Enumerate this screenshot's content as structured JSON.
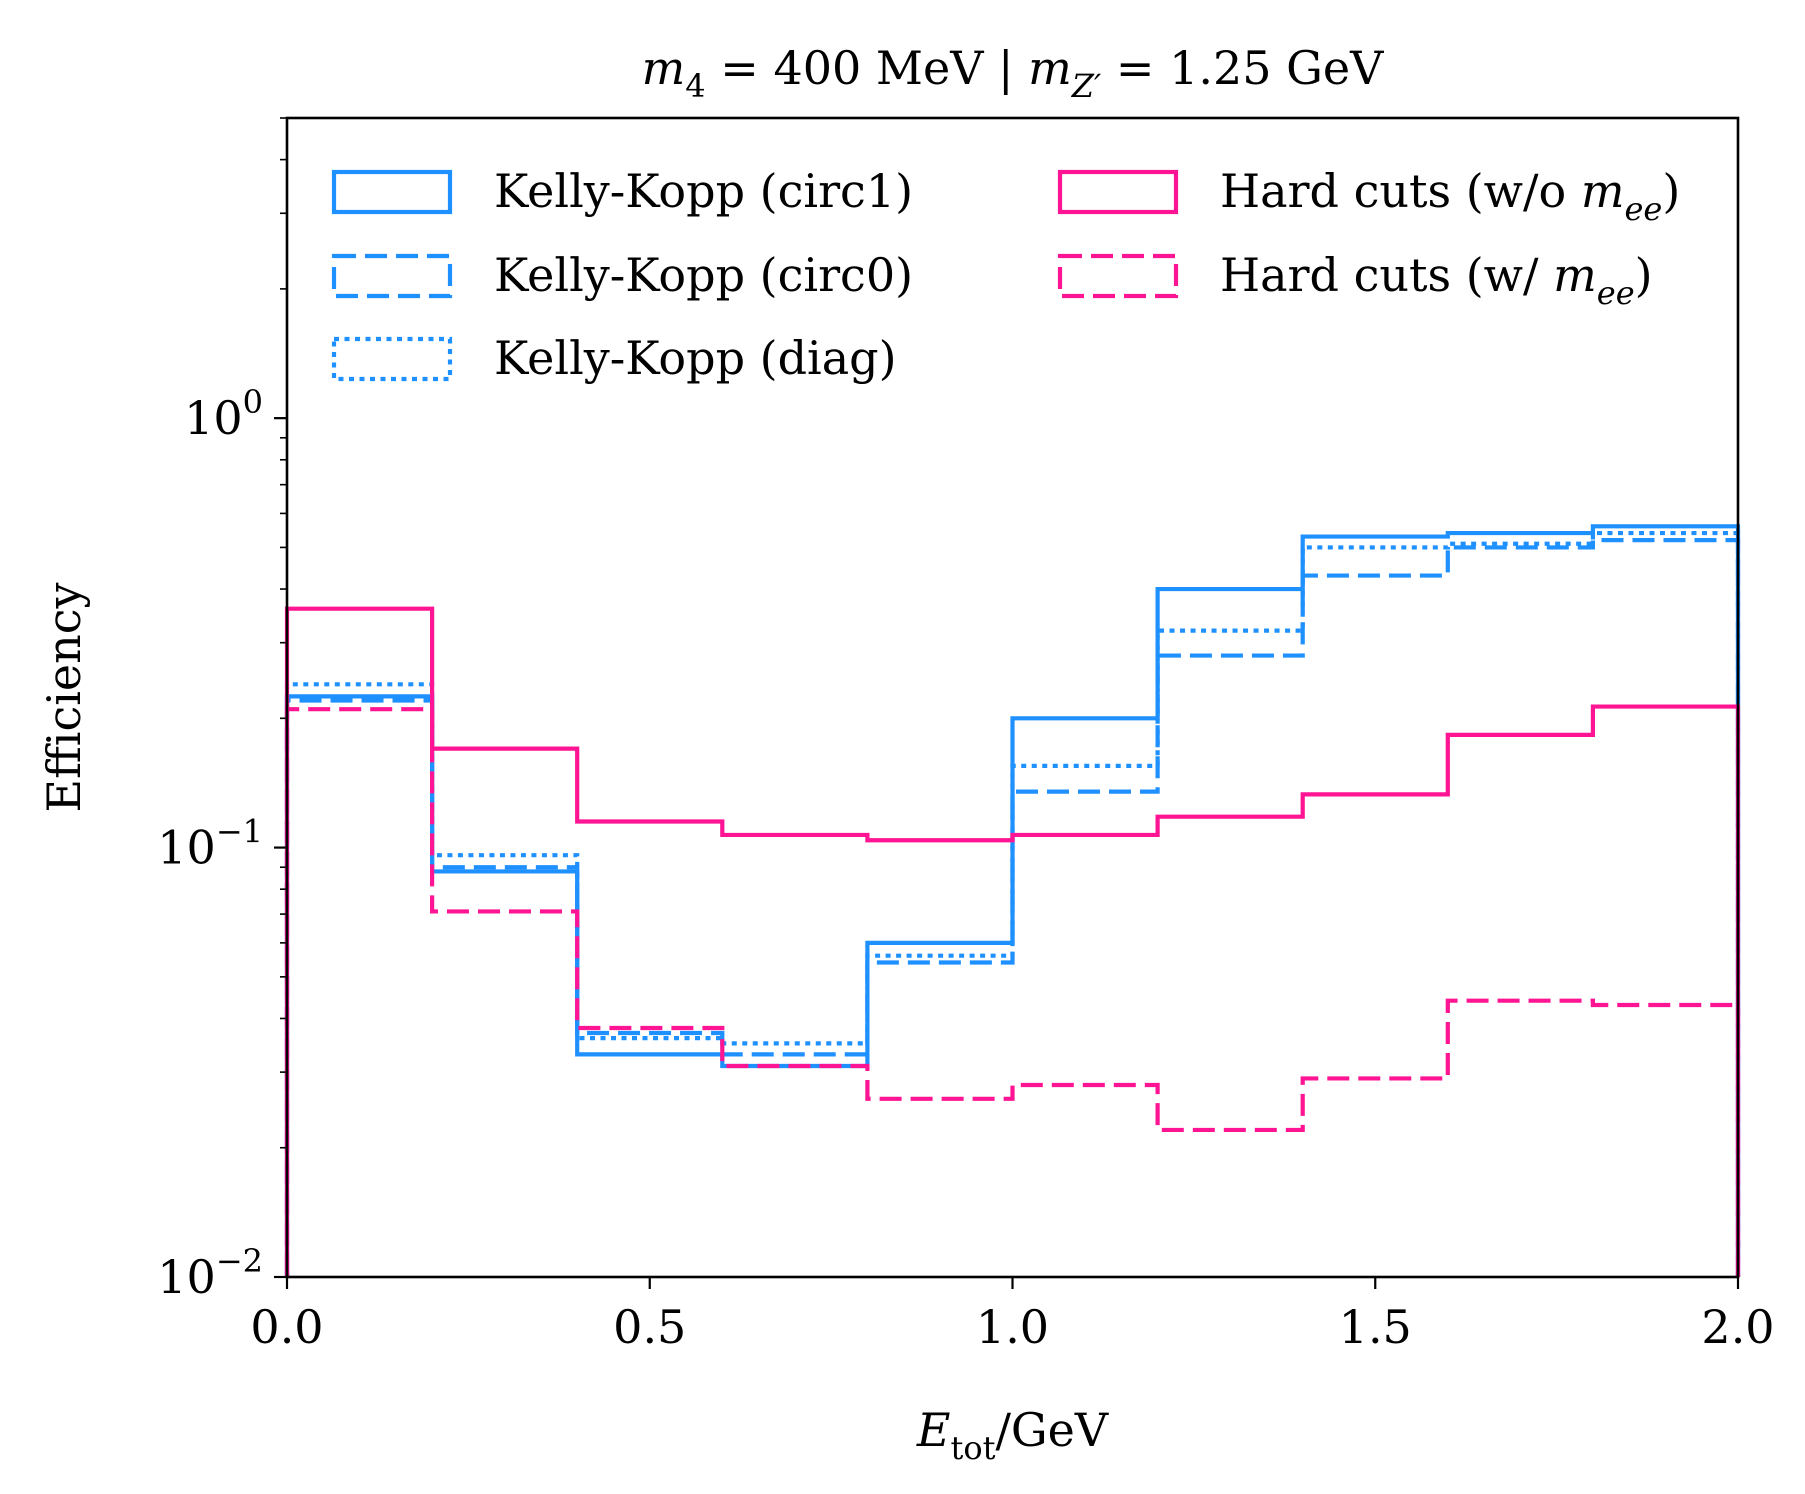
{
  "chart_data": {
    "type": "step-histogram",
    "title": {
      "parts": [
        {
          "t": "m",
          "style": "italic"
        },
        {
          "t": "4",
          "style": "sub"
        },
        {
          "t": " = 400 MeV | "
        },
        {
          "t": "m",
          "style": "italic"
        },
        {
          "t": "Z′",
          "style": "sub-italic"
        },
        {
          "t": " = 1.25 GeV"
        }
      ]
    },
    "xlabel": {
      "parts": [
        {
          "t": "E",
          "style": "italic"
        },
        {
          "t": "tot",
          "style": "sub"
        },
        {
          "t": "/GeV"
        }
      ]
    },
    "ylabel": "Efficiency",
    "xlim": [
      0,
      2
    ],
    "ylim": [
      0.01,
      5
    ],
    "yscale": "log",
    "xticks": [
      {
        "v": 0,
        "label": "0.0"
      },
      {
        "v": 0.5,
        "label": "0.5"
      },
      {
        "v": 1,
        "label": "1.0"
      },
      {
        "v": 1.5,
        "label": "1.5"
      },
      {
        "v": 2,
        "label": "2.0"
      }
    ],
    "yticks": [
      {
        "v": 1,
        "base": "10",
        "exp": "0"
      },
      {
        "v": 0.1,
        "base": "10",
        "exp": "−1"
      },
      {
        "v": 0.01,
        "base": "10",
        "exp": "−2"
      }
    ],
    "bin_edges": [
      0,
      0.2,
      0.4,
      0.6,
      0.8,
      1.0,
      1.2,
      1.4,
      1.6,
      1.8,
      2.0
    ],
    "legend": {
      "position": "top-left",
      "columns": 2
    },
    "series": [
      {
        "name": "Kelly-Kopp (circ1)",
        "color": "#1E90FF",
        "linestyle": "solid",
        "values": [
          0.225,
          0.088,
          0.033,
          0.031,
          0.06,
          0.2,
          0.4,
          0.53,
          0.54,
          0.56
        ]
      },
      {
        "name": "Kelly-Kopp (circ0)",
        "color": "#1E90FF",
        "linestyle": "dashed",
        "values": [
          0.22,
          0.09,
          0.037,
          0.033,
          0.054,
          0.135,
          0.28,
          0.43,
          0.5,
          0.52
        ]
      },
      {
        "name": "Kelly-Kopp (diag)",
        "color": "#1E90FF",
        "linestyle": "dotted",
        "values": [
          0.24,
          0.096,
          0.036,
          0.035,
          0.056,
          0.155,
          0.32,
          0.5,
          0.51,
          0.54
        ]
      },
      {
        "name_parts": [
          {
            "t": "Hard cuts (w/o "
          },
          {
            "t": "m",
            "style": "italic"
          },
          {
            "t": "ee",
            "style": "sub-italic"
          },
          {
            "t": ")"
          }
        ],
        "color": "#FF1493",
        "linestyle": "solid",
        "values": [
          0.36,
          0.17,
          0.115,
          0.107,
          0.104,
          0.107,
          0.118,
          0.133,
          0.183,
          0.213
        ]
      },
      {
        "name_parts": [
          {
            "t": "Hard cuts (w/ "
          },
          {
            "t": "m",
            "style": "italic"
          },
          {
            "t": "ee",
            "style": "sub-italic"
          },
          {
            "t": ")"
          }
        ],
        "color": "#FF1493",
        "linestyle": "dashed",
        "values": [
          0.21,
          0.071,
          0.038,
          0.031,
          0.026,
          0.028,
          0.022,
          0.029,
          0.044,
          0.043
        ]
      }
    ]
  }
}
